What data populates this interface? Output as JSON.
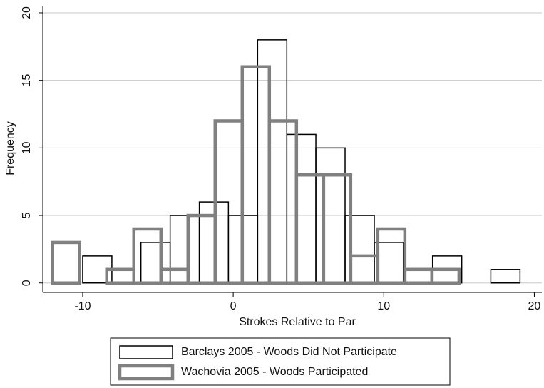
{
  "chart_data": {
    "type": "histogram",
    "x_label": "Strokes Relative to Par",
    "y_label": "Frequency",
    "xlim": [
      -12.65,
      20.5
    ],
    "xticks": [
      -10,
      0,
      10,
      20
    ],
    "ylim": [
      -0.7,
      20.5
    ],
    "yticks": [
      0,
      5,
      10,
      15,
      20
    ],
    "grid": true,
    "legend": "bottom",
    "series": [
      {
        "name": "Barclays 2005 - Woods Did Not Participate",
        "color": "#000000",
        "bins": [
          -10,
          -8.06,
          -6.13,
          -4.19,
          -2.25,
          -0.32,
          1.62,
          3.56,
          5.49,
          7.43,
          9.37,
          11.3,
          13.24,
          15.18,
          17.11,
          19.05
        ],
        "values": [
          2,
          0,
          3,
          5,
          6,
          5,
          18,
          11,
          10,
          5,
          3,
          1,
          2,
          0,
          1
        ]
      },
      {
        "name": "Wachovia 2005 - Woods Participated",
        "color": "#808080",
        "bins": [
          -12,
          -10.2,
          -8.4,
          -6.6,
          -4.8,
          -3,
          -1.2,
          0.6,
          2.4,
          4.2,
          6,
          7.8,
          9.6,
          11.4,
          13.2,
          15
        ],
        "values": [
          3,
          0,
          1,
          4,
          1,
          5,
          12,
          16,
          12,
          8,
          8,
          2,
          4,
          1,
          1
        ]
      }
    ]
  }
}
